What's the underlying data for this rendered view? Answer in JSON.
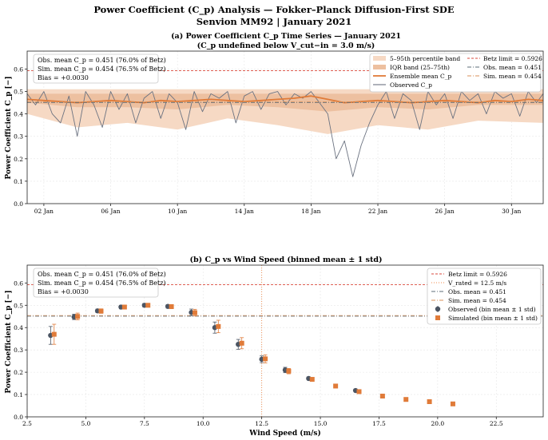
{
  "figure": {
    "title_line1": "Power Coefficient (C_p) Analysis — Fokker–Planck Diffusion-First SDE",
    "title_line2": "Senvion MM92  |  January 2021"
  },
  "colors": {
    "observed": "#4b5563",
    "simulated": "#e07b39",
    "band_outer": "#f6d9c4",
    "band_inner": "#edc0a0",
    "betz": "#d94a3d",
    "obs_mean": "#5d6e7a",
    "sim_mean": "#d9925a",
    "v_rated": "#f08a4b"
  },
  "chart_data": [
    {
      "type": "line",
      "panel": "(a)",
      "title_line1": "(a)  Power Coefficient C_p Time Series — January 2021",
      "title_line2": "(C_p undefined below V_cut−in = 3.0 m/s)",
      "xlabel": "",
      "ylabel": "Power Coefficient  C_p  [−]",
      "x_range": [
        "2021-01-01",
        "2021-02-01"
      ],
      "ylim": [
        0.0,
        0.68
      ],
      "yticks": [
        0.0,
        0.1,
        0.2,
        0.3,
        0.4,
        0.5,
        0.6
      ],
      "xtick_labels": [
        "02 Jan",
        "06 Jan",
        "10 Jan",
        "14 Jan",
        "18 Jan",
        "22 Jan",
        "26 Jan",
        "30 Jan"
      ],
      "xtick_days": [
        2,
        6,
        10,
        14,
        18,
        22,
        26,
        30
      ],
      "grid": true,
      "legend": "top-right",
      "legend_entries": [
        "5–95th percentile band",
        "IQR band (25–75th)",
        "Ensemble mean C_p",
        "Observed C_p",
        "Betz limit = 0.5926",
        "Obs. mean = 0.451",
        "Sim. mean = 0.454"
      ],
      "stats_box": [
        "Obs. mean C_p = 0.451  (76.0% of Betz)",
        "Sim. mean C_p = 0.454  (76.5% of Betz)",
        "Bias = +0.0030"
      ],
      "hlines": {
        "betz": 0.5926,
        "obs_mean": 0.451,
        "sim_mean": 0.454
      },
      "series": [
        {
          "name": "5–95th percentile band",
          "day": [
            1.0,
            4.0,
            7.0,
            10.0,
            13.0,
            16.0,
            19.0,
            22.0,
            25.0,
            28.0,
            31.9
          ],
          "lower": [
            0.4,
            0.34,
            0.36,
            0.33,
            0.38,
            0.35,
            0.31,
            0.35,
            0.33,
            0.37,
            0.36
          ],
          "upper": [
            0.51,
            0.51,
            0.51,
            0.51,
            0.51,
            0.51,
            0.51,
            0.51,
            0.51,
            0.51,
            0.51
          ]
        },
        {
          "name": "IQR band (25–75th)",
          "day": [
            1.0,
            4.0,
            7.0,
            10.0,
            13.0,
            16.0,
            19.0,
            22.0,
            25.0,
            28.0,
            31.9
          ],
          "lower": [
            0.45,
            0.43,
            0.43,
            0.42,
            0.44,
            0.43,
            0.41,
            0.43,
            0.42,
            0.44,
            0.44
          ],
          "upper": [
            0.49,
            0.49,
            0.49,
            0.49,
            0.49,
            0.49,
            0.49,
            0.49,
            0.49,
            0.49,
            0.49
          ]
        },
        {
          "name": "Ensemble mean C_p",
          "day": [
            1.0,
            2.0,
            3.0,
            4.0,
            5.0,
            6.0,
            7.0,
            8.0,
            9.0,
            10.0,
            11.0,
            12.0,
            13.0,
            14.0,
            15.0,
            16.0,
            17.0,
            18.0,
            19.0,
            20.0,
            21.0,
            22.0,
            23.0,
            24.0,
            25.0,
            26.0,
            27.0,
            28.0,
            29.0,
            30.0,
            31.0,
            31.9
          ],
          "values": [
            0.465,
            0.46,
            0.455,
            0.45,
            0.455,
            0.46,
            0.455,
            0.45,
            0.46,
            0.455,
            0.46,
            0.465,
            0.46,
            0.455,
            0.46,
            0.465,
            0.47,
            0.48,
            0.465,
            0.45,
            0.455,
            0.46,
            0.455,
            0.45,
            0.455,
            0.46,
            0.455,
            0.45,
            0.46,
            0.455,
            0.465,
            0.46
          ]
        },
        {
          "name": "Observed C_p",
          "day": [
            1.0,
            1.5,
            2.0,
            2.5,
            3.0,
            3.5,
            4.0,
            4.5,
            5.0,
            5.5,
            6.0,
            6.5,
            7.0,
            7.5,
            8.0,
            8.5,
            9.0,
            9.5,
            10.0,
            10.5,
            11.0,
            11.5,
            12.0,
            12.5,
            13.0,
            13.5,
            14.0,
            14.5,
            15.0,
            15.5,
            16.0,
            16.5,
            17.0,
            17.5,
            18.0,
            18.5,
            19.0,
            19.5,
            20.0,
            20.5,
            21.0,
            21.5,
            22.0,
            22.5,
            23.0,
            23.5,
            24.0,
            24.5,
            25.0,
            25.5,
            26.0,
            26.5,
            27.0,
            27.5,
            28.0,
            28.5,
            29.0,
            29.5,
            30.0,
            30.5,
            31.0,
            31.5,
            31.9
          ],
          "values": [
            0.49,
            0.44,
            0.5,
            0.4,
            0.36,
            0.48,
            0.3,
            0.5,
            0.44,
            0.34,
            0.5,
            0.42,
            0.49,
            0.36,
            0.47,
            0.5,
            0.38,
            0.49,
            0.45,
            0.33,
            0.5,
            0.41,
            0.49,
            0.47,
            0.5,
            0.36,
            0.48,
            0.5,
            0.42,
            0.49,
            0.5,
            0.44,
            0.49,
            0.47,
            0.5,
            0.45,
            0.4,
            0.2,
            0.28,
            0.12,
            0.26,
            0.36,
            0.44,
            0.5,
            0.38,
            0.49,
            0.46,
            0.33,
            0.5,
            0.44,
            0.49,
            0.38,
            0.5,
            0.46,
            0.49,
            0.4,
            0.5,
            0.47,
            0.49,
            0.39,
            0.5,
            0.45,
            0.49
          ]
        }
      ]
    },
    {
      "type": "scatter",
      "panel": "(b)",
      "title": "(b)  C_p vs Wind Speed  (binned mean ± 1 std)",
      "xlabel": "Wind Speed (m/s)",
      "ylabel": "Power Coefficient  C_p  [−]",
      "xlim": [
        2.5,
        24.5
      ],
      "ylim": [
        0.0,
        0.68
      ],
      "xticks": [
        2.5,
        5.0,
        7.5,
        10.0,
        12.5,
        15.0,
        17.5,
        20.0,
        22.5
      ],
      "yticks": [
        0.0,
        0.1,
        0.2,
        0.3,
        0.4,
        0.5,
        0.6
      ],
      "grid": true,
      "legend": "top-right",
      "legend_entries": [
        "Betz limit = 0.5926",
        "V_rated = 12.5 m/s",
        "Obs. mean = 0.451",
        "Sim. mean = 0.454",
        "Observed (bin mean ± 1 std)",
        "Simulated (bin mean ± 1 std)"
      ],
      "stats_box": [
        "Obs. mean C_p = 0.451  (76.0% of Betz)",
        "Sim. mean C_p = 0.454  (76.5% of Betz)",
        "Bias = +0.0030"
      ],
      "hlines": {
        "betz": 0.5926,
        "obs_mean": 0.451,
        "sim_mean": 0.454
      },
      "vline": {
        "v_rated": 12.5
      },
      "series": [
        {
          "name": "Observed (bin mean ± 1 std)",
          "x": [
            3.5,
            4.5,
            5.5,
            6.5,
            7.5,
            8.5,
            9.5,
            10.5,
            11.5,
            12.5,
            13.5,
            14.5,
            16.5
          ],
          "y": [
            0.365,
            0.448,
            0.475,
            0.492,
            0.5,
            0.495,
            0.468,
            0.4,
            0.325,
            0.258,
            0.21,
            0.172,
            0.118
          ],
          "err": [
            0.04,
            0.012,
            0.008,
            0.008,
            0.008,
            0.008,
            0.015,
            0.025,
            0.022,
            0.015,
            0.012,
            0.006,
            0.005
          ]
        },
        {
          "name": "Simulated (bin mean ± 1 std)",
          "x": [
            3.65,
            4.65,
            5.65,
            6.65,
            7.65,
            8.65,
            9.65,
            10.65,
            11.65,
            12.65,
            13.65,
            14.65,
            15.65,
            16.65,
            17.65,
            18.65,
            19.65,
            20.65
          ],
          "y": [
            0.37,
            0.45,
            0.474,
            0.492,
            0.5,
            0.494,
            0.467,
            0.405,
            0.33,
            0.26,
            0.205,
            0.168,
            0.138,
            0.113,
            0.093,
            0.078,
            0.068,
            0.058
          ],
          "err": [
            0.045,
            0.015,
            0.01,
            0.008,
            0.008,
            0.008,
            0.015,
            0.028,
            0.025,
            0.018,
            0.012,
            0.006,
            0.005,
            0.005,
            0.004,
            0.004,
            0.004,
            0.004
          ]
        }
      ]
    }
  ]
}
